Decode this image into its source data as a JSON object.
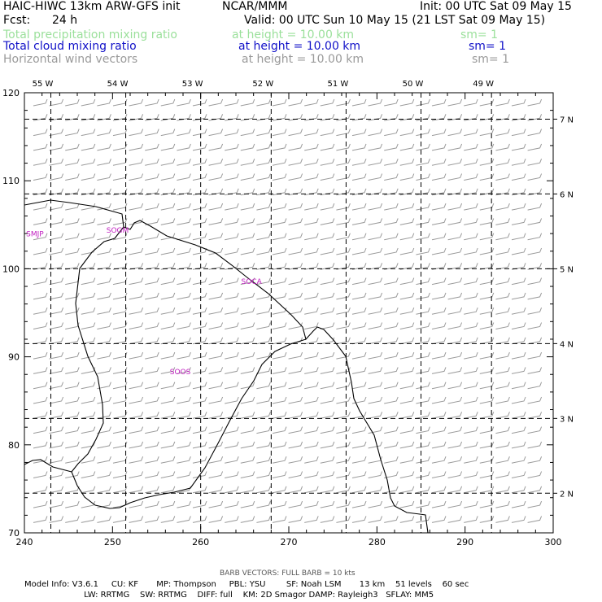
{
  "header": {
    "model_title": "HAIC-HIWC 13km ARW-GFS init",
    "org": "NCAR/MMM",
    "init": "Init: 00 UTC Sat 09 May 15",
    "fcst_label": "Fcst:",
    "fcst_value": "24 h",
    "valid": "Valid: 00 UTC Sun 10 May 15 (21 LST Sat 09 May 15)"
  },
  "fields": [
    {
      "name": "Total precipitation mixing ratio",
      "level": "at height = 10.00 km",
      "smooth": "sm= 1",
      "color": "#9be09b"
    },
    {
      "name": "Total cloud mixing ratio",
      "level": "at height = 10.00 km",
      "smooth": "sm= 1",
      "color": "#1010c8"
    },
    {
      "name": "Horizontal wind vectors",
      "level": "at height = 10.00 km",
      "smooth": "sm= 1",
      "color": "#9a9a9a"
    }
  ],
  "map": {
    "lon_labels": [
      {
        "label": "55 W",
        "x_grid": 243
      },
      {
        "label": "54 W",
        "x_grid": 251.5
      },
      {
        "label": "53 W",
        "x_grid": 260
      },
      {
        "label": "52 W",
        "x_grid": 268
      },
      {
        "label": "51 W",
        "x_grid": 276.5
      },
      {
        "label": "50 W",
        "x_grid": 285
      },
      {
        "label": "49 W",
        "x_grid": 293
      }
    ],
    "lat_labels": [
      {
        "label": "7 N",
        "y_grid": 117
      },
      {
        "label": "6 N",
        "y_grid": 108.5
      },
      {
        "label": "5 N",
        "y_grid": 100
      },
      {
        "label": "4 N",
        "y_grid": 91.5
      },
      {
        "label": "3 N",
        "y_grid": 83
      },
      {
        "label": "2 N",
        "y_grid": 74.5
      }
    ],
    "x_ticks": [
      "240",
      "250",
      "260",
      "270",
      "280",
      "290",
      "300"
    ],
    "y_ticks": [
      "70",
      "80",
      "90",
      "100",
      "110",
      "120"
    ],
    "x_range": [
      240,
      300
    ],
    "y_range": [
      70,
      120
    ],
    "stations": [
      {
        "label": "SMJP",
        "x": 240.2,
        "y": 103.7
      },
      {
        "label": "SOGM",
        "x": 249.3,
        "y": 104.1
      },
      {
        "label": "SOCA",
        "x": 264.6,
        "y": 98.3
      },
      {
        "label": "SOOS",
        "x": 256.5,
        "y": 88.0
      }
    ]
  },
  "legend": {
    "barb_title": "BARB VECTORS:  FULL BARB = 10 kts"
  },
  "footer": {
    "line1": "Model Info: V3.6.1     CU: KF       MP: Thompson     PBL: YSU        SF: Noah LSM       13 km    51 levels    60 sec",
    "line2": "                       LW: RRTMG    SW: RRTMG    DIFF: full    KM: 2D Smagor DAMP: Rayleigh3   SFLAY: MM5"
  }
}
